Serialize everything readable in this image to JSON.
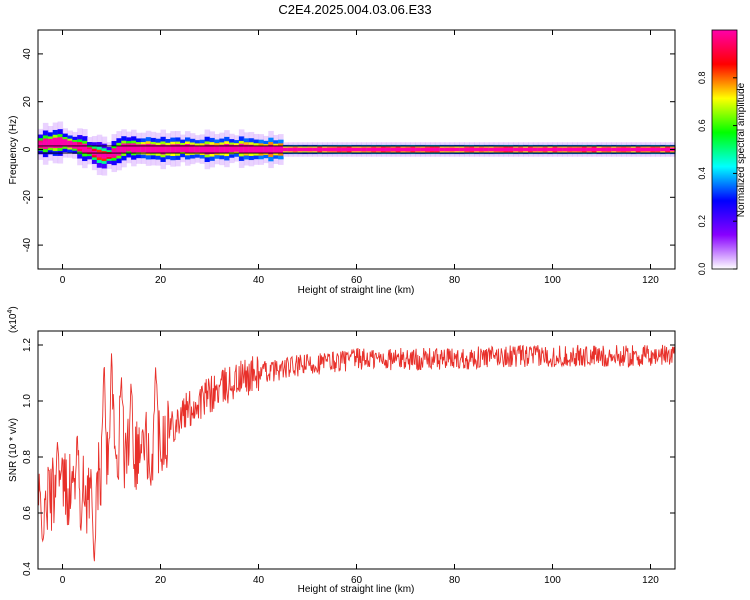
{
  "title": "C2E4.2025.004.03.06.E33",
  "chart_data": [
    {
      "type": "heatmap",
      "xlabel": "Height of straight line (km)",
      "ylabel": "Frequency (Hz)",
      "xlim": [
        -5,
        125
      ],
      "ylim": [
        -50,
        50
      ],
      "xticks": [
        0,
        20,
        40,
        60,
        80,
        100,
        120
      ],
      "yticks": [
        -40,
        -20,
        0,
        20,
        40
      ],
      "colorbar": {
        "label": "Normalized spectral amplitude",
        "range": [
          0,
          1
        ],
        "ticks": [
          "0.0",
          "0.2",
          "0.4",
          "0.6",
          "0.8"
        ],
        "colors": [
          "#ffffff",
          "#8800ff",
          "#0000ff",
          "#00ffff",
          "#00ff00",
          "#ffff00",
          "#ff0000",
          "#ff00aa"
        ]
      },
      "ridge": {
        "height_km": [
          -5,
          -3,
          0,
          3,
          5,
          7,
          9,
          11,
          13,
          15,
          18,
          20,
          25,
          30,
          35,
          40,
          50,
          60,
          80,
          100,
          125
        ],
        "frequency_hz": [
          2,
          2.5,
          3,
          1.5,
          0,
          -2,
          -3,
          -1,
          1,
          0.5,
          0.5,
          0,
          0.5,
          0,
          0.5,
          0,
          0,
          0,
          0,
          0,
          0
        ],
        "amplitude": [
          0.5,
          0.6,
          0.7,
          0.6,
          0.5,
          0.4,
          0.45,
          0.55,
          0.65,
          0.7,
          0.8,
          0.75,
          0.8,
          0.8,
          0.8,
          0.85,
          0.9,
          0.95,
          0.95,
          0.95,
          0.95
        ]
      }
    },
    {
      "type": "line",
      "xlabel": "Height of straight line (km)",
      "ylabel": "SNR (10 * v/v)",
      "scale_label": "(x10",
      "scale_exponent": "4",
      "scale_close": ")",
      "xlim": [
        -5,
        125
      ],
      "ylim": [
        0.4,
        1.25
      ],
      "xticks": [
        0,
        20,
        40,
        60,
        80,
        100,
        120
      ],
      "yticks": [
        "0.4",
        "0.6",
        "0.8",
        "1.0",
        "1.2"
      ],
      "color": "#e8302a",
      "trend": {
        "x": [
          -5,
          0,
          5,
          10,
          15,
          20,
          25,
          30,
          35,
          40,
          50,
          60,
          70,
          80,
          90,
          100,
          110,
          120,
          125
        ],
        "y": [
          0.62,
          0.7,
          0.66,
          0.8,
          0.82,
          0.88,
          0.96,
          1.02,
          1.07,
          1.1,
          1.13,
          1.15,
          1.15,
          1.15,
          1.16,
          1.16,
          1.16,
          1.16,
          1.17
        ]
      },
      "spikes": {
        "x": [
          -4,
          -1,
          3,
          6.5,
          8.5,
          10,
          12,
          14,
          18,
          19
        ],
        "y": [
          0.5,
          0.86,
          0.88,
          0.42,
          1.15,
          1.17,
          1.1,
          1.08,
          0.68,
          1.12
        ]
      }
    }
  ]
}
